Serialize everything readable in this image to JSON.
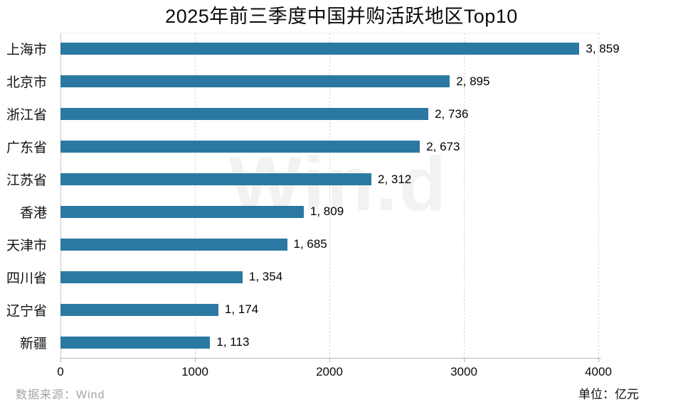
{
  "title": "2025年前三季度中国并购活跃地区Top10",
  "watermark": "Win.d",
  "footer": {
    "source": "数据来源：Wind",
    "unit": "单位：亿元"
  },
  "chart_data": {
    "type": "bar",
    "orientation": "horizontal",
    "title": "2025年前三季度中国并购活跃地区Top10",
    "categories": [
      "上海市",
      "北京市",
      "浙江省",
      "广东省",
      "江苏省",
      "香港",
      "天津市",
      "四川省",
      "辽宁省",
      "新疆"
    ],
    "values": [
      3859,
      2895,
      2736,
      2673,
      2312,
      1809,
      1685,
      1354,
      1174,
      1113
    ],
    "value_labels": [
      "3, 859",
      "2, 895",
      "2, 736",
      "2, 673",
      "2, 312",
      "1, 809",
      "1, 685",
      "1, 354",
      "1, 174",
      "1, 113"
    ],
    "xlabel": "",
    "ylabel": "",
    "unit": "亿元",
    "xlim": [
      0,
      4000
    ],
    "x_ticks": [
      0,
      1000,
      2000,
      3000,
      4000
    ],
    "x_tick_labels": [
      "0",
      "1000",
      "2000",
      "3000",
      "4000"
    ],
    "bar_color": "#2B79A2",
    "grid": "vertical-dashed",
    "legend": "none",
    "source": "Wind"
  }
}
